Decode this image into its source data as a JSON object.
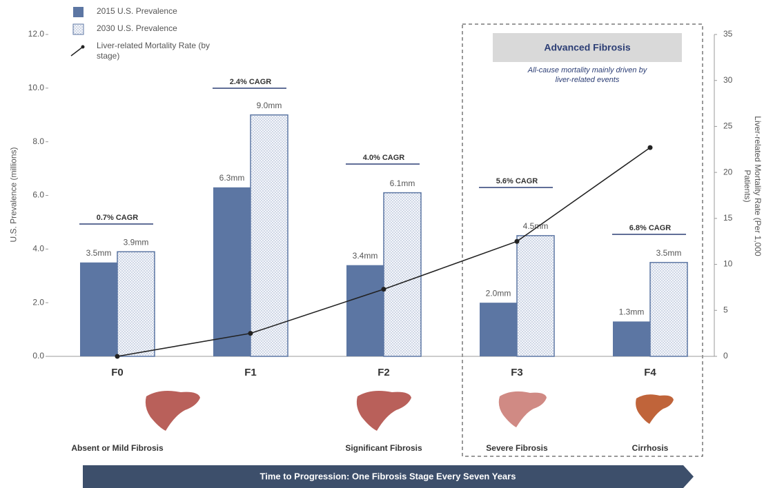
{
  "chart_data": {
    "type": "bar-line",
    "categories": [
      "F0",
      "F1",
      "F2",
      "F3",
      "F4"
    ],
    "series": [
      {
        "name": "2015 U.S. Prevalence",
        "color": "#5c76a3",
        "values": [
          3.5,
          6.3,
          3.4,
          2.0,
          1.3
        ],
        "value_labels": [
          "3.5mm",
          "6.3mm",
          "3.4mm",
          "2.0mm",
          "1.3mm"
        ]
      },
      {
        "name": "2030 U.S. Prevalence",
        "color": "#5c76a3",
        "pattern": "dotted",
        "values": [
          3.9,
          9.0,
          6.1,
          4.5,
          3.5
        ],
        "value_labels": [
          "3.9mm",
          "9.0mm",
          "6.1mm",
          "4.5mm",
          "3.5mm"
        ]
      },
      {
        "name": "Liver-related Mortality Rate (by stage)",
        "color": "#222222",
        "axis": "y2",
        "type": "line",
        "values": [
          0,
          2.5,
          7.3,
          12.5,
          22.7
        ]
      }
    ],
    "cagr_labels": [
      "0.7% CAGR",
      "2.4% CAGR",
      "4.0% CAGR",
      "5.6% CAGR",
      "6.8% CAGR"
    ],
    "stage_labels": [
      "Absent or Mild Fibrosis",
      null,
      "Significant Fibrosis",
      "Severe Fibrosis",
      "Cirrhosis"
    ],
    "region": {
      "title": "Advanced Fibrosis",
      "subtitle": "All-cause mortality mainly driven by liver-related events"
    },
    "arrow_label": "Time to Progression: One Fibrosis Stage Every Seven Years",
    "ylabel": "U.S. Prevalence (millions)",
    "y2label": "Liver-related Mortality Rate (Per 1,000 Patients)",
    "ylim": [
      0,
      12
    ],
    "yticks": [
      {
        "value": 0,
        "label": "0.0"
      },
      {
        "value": 2,
        "label": "2.0"
      },
      {
        "value": 4,
        "label": "4.0"
      },
      {
        "value": 6,
        "label": "6.0"
      },
      {
        "value": 8,
        "label": "8.0"
      },
      {
        "value": 10,
        "label": "10.0"
      },
      {
        "value": 12,
        "label": "12.0"
      }
    ],
    "y2lim": [
      0,
      35
    ],
    "y2ticks": [
      0,
      5,
      10,
      15,
      20,
      25,
      30,
      35
    ],
    "legend": "top-left"
  }
}
